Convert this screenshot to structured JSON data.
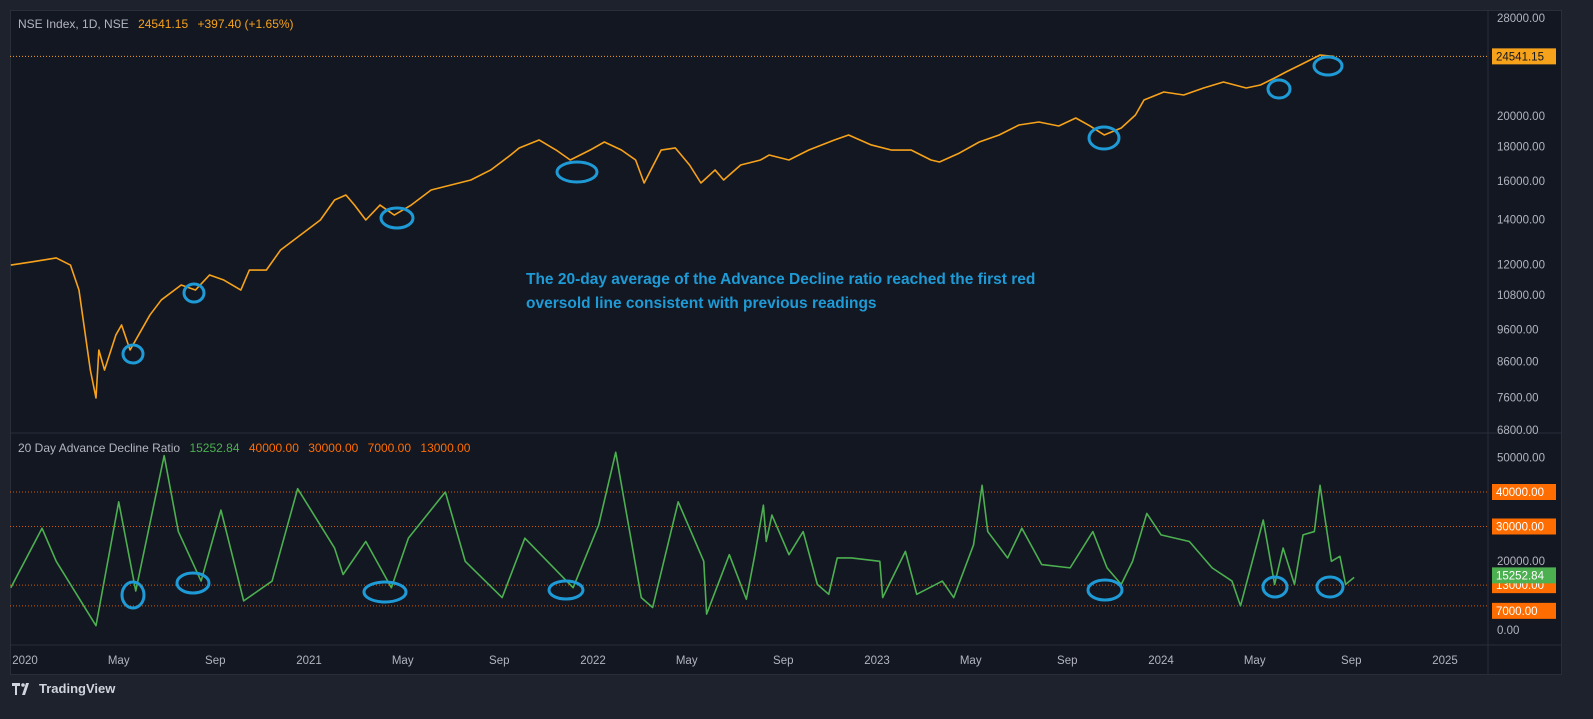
{
  "price_legend": {
    "symbol": "NSE Index, 1D, NSE",
    "last": "24541.15",
    "change": "+397.40 (+1.65%)"
  },
  "ad_legend": {
    "name": "20 Day Advance Decline Ratio",
    "value": "15252.84",
    "l1": "40000.00",
    "l2": "30000.00",
    "l3": "7000.00",
    "l4": "13000.00"
  },
  "annotation": {
    "line1": "The 20-day average of the Advance Decline ratio reached the first red",
    "line2": "oversold line consistent with previous readings"
  },
  "footer": {
    "brand": "TradingView"
  },
  "colors": {
    "price": "#f7a21b",
    "ad": "#4caf50",
    "levels": "#ff6d00",
    "circles": "#1e9bd7",
    "bg": "#131722"
  },
  "chart_data": [
    {
      "type": "line",
      "title": "NSE Index, 1D, NSE",
      "yscale": "log",
      "ylim": [
        6800,
        28000
      ],
      "yticks": [
        "28000.00",
        "20000.00",
        "18000.00",
        "16000.00",
        "14000.00",
        "12000.00",
        "10800.00",
        "9600.00",
        "8600.00",
        "7600.00",
        "6800.00"
      ],
      "last_price_label": "24541.15",
      "series": [
        {
          "name": "NSE Index",
          "points": [
            [
              2019.95,
              11980
            ],
            [
              2020.02,
              12105
            ],
            [
              2020.11,
              12275
            ],
            [
              2020.16,
              11980
            ],
            [
              2020.19,
              10995
            ],
            [
              2020.21,
              9585
            ],
            [
              2020.23,
              8352
            ],
            [
              2020.25,
              7588
            ],
            [
              2020.26,
              8946
            ],
            [
              2020.28,
              8352
            ],
            [
              2020.32,
              9422
            ],
            [
              2020.34,
              9750
            ],
            [
              2020.37,
              8946
            ],
            [
              2020.4,
              9422
            ],
            [
              2020.44,
              10092
            ],
            [
              2020.48,
              10626
            ],
            [
              2020.55,
              11186
            ],
            [
              2020.6,
              10995
            ],
            [
              2020.65,
              11578
            ],
            [
              2020.7,
              11379
            ],
            [
              2020.76,
              10995
            ],
            [
              2020.79,
              11777
            ],
            [
              2020.85,
              11777
            ],
            [
              2020.9,
              12617
            ],
            [
              2020.97,
              13283
            ],
            [
              2021.04,
              13986
            ],
            [
              2021.09,
              14980
            ],
            [
              2021.13,
              15240
            ],
            [
              2021.16,
              14725
            ],
            [
              2021.2,
              13986
            ],
            [
              2021.25,
              14725
            ],
            [
              2021.3,
              14227
            ],
            [
              2021.36,
              14725
            ],
            [
              2021.43,
              15504
            ],
            [
              2021.5,
              15772
            ],
            [
              2021.57,
              16047
            ],
            [
              2021.64,
              16610
            ],
            [
              2021.71,
              17486
            ],
            [
              2021.74,
              17914
            ],
            [
              2021.81,
              18413
            ],
            [
              2021.87,
              17788
            ],
            [
              2021.92,
              17189
            ],
            [
              2021.99,
              17788
            ],
            [
              2022.04,
              18285
            ],
            [
              2022.1,
              17788
            ],
            [
              2022.15,
              17189
            ],
            [
              2022.18,
              15882
            ],
            [
              2022.24,
              17788
            ],
            [
              2022.29,
              17914
            ],
            [
              2022.34,
              16895
            ],
            [
              2022.38,
              15882
            ],
            [
              2022.43,
              16610
            ],
            [
              2022.46,
              16047
            ],
            [
              2022.52,
              16895
            ],
            [
              2022.59,
              17189
            ],
            [
              2022.62,
              17486
            ],
            [
              2022.69,
              17189
            ],
            [
              2022.76,
              17788
            ],
            [
              2022.85,
              18413
            ],
            [
              2022.9,
              18732
            ],
            [
              2022.98,
              18100
            ],
            [
              2023.05,
              17788
            ],
            [
              2023.12,
              17788
            ],
            [
              2023.19,
              17189
            ],
            [
              2023.22,
              17071
            ],
            [
              2023.29,
              17600
            ],
            [
              2023.36,
              18285
            ],
            [
              2023.43,
              18732
            ],
            [
              2023.5,
              19384
            ],
            [
              2023.57,
              19585
            ],
            [
              2023.64,
              19320
            ],
            [
              2023.7,
              19857
            ],
            [
              2023.75,
              19320
            ],
            [
              2023.8,
              18732
            ],
            [
              2023.86,
              19185
            ],
            [
              2023.91,
              20062
            ],
            [
              2023.94,
              21123
            ],
            [
              2024.01,
              21714
            ],
            [
              2024.08,
              21490
            ],
            [
              2024.15,
              22014
            ],
            [
              2024.22,
              22473
            ],
            [
              2024.3,
              22014
            ],
            [
              2024.35,
              22243
            ],
            [
              2024.4,
              22784
            ],
            [
              2024.44,
              23257
            ],
            [
              2024.49,
              23825
            ],
            [
              2024.56,
              24657
            ],
            [
              2024.61,
              24541.15
            ]
          ]
        }
      ]
    },
    {
      "type": "line",
      "title": "20 Day Advance Decline Ratio",
      "ylim": [
        0,
        55000
      ],
      "yticks": [
        "50000.00",
        "20000.00",
        "0.00"
      ],
      "levels": [
        {
          "value": 40000,
          "label": "40000.00"
        },
        {
          "value": 30000,
          "label": "30000.00"
        },
        {
          "value": 13000,
          "label": "13000.00"
        },
        {
          "value": 7000,
          "label": "7000.00"
        }
      ],
      "last_value_label": "15252.84",
      "series": [
        {
          "name": "20 Day Advance Decline Ratio",
          "points": [
            [
              2019.95,
              12260
            ],
            [
              2020.06,
              29490
            ],
            [
              2020.11,
              19920
            ],
            [
              2020.25,
              1260
            ],
            [
              2020.33,
              37140
            ],
            [
              2020.39,
              11300
            ],
            [
              2020.49,
              50540
            ],
            [
              2020.54,
              28530
            ],
            [
              2020.62,
              14180
            ],
            [
              2020.69,
              34750
            ],
            [
              2020.77,
              8440
            ],
            [
              2020.87,
              14180
            ],
            [
              2020.96,
              40970
            ],
            [
              2021.09,
              23750
            ],
            [
              2021.12,
              16090
            ],
            [
              2021.2,
              25660
            ],
            [
              2021.29,
              12260
            ],
            [
              2021.35,
              26620
            ],
            [
              2021.48,
              40010
            ],
            [
              2021.55,
              19920
            ],
            [
              2021.68,
              9390
            ],
            [
              2021.76,
              26620
            ],
            [
              2021.93,
              12260
            ],
            [
              2022.02,
              30440
            ],
            [
              2022.08,
              51500
            ],
            [
              2022.17,
              9390
            ],
            [
              2022.21,
              6520
            ],
            [
              2022.3,
              37140
            ],
            [
              2022.39,
              19920
            ],
            [
              2022.4,
              4610
            ],
            [
              2022.48,
              21830
            ],
            [
              2022.54,
              8910
            ],
            [
              2022.57,
              21830
            ],
            [
              2022.6,
              36190
            ],
            [
              2022.61,
              25660
            ],
            [
              2022.63,
              33320
            ],
            [
              2022.69,
              21830
            ],
            [
              2022.74,
              28530
            ],
            [
              2022.79,
              13220
            ],
            [
              2022.83,
              10350
            ],
            [
              2022.86,
              20880
            ],
            [
              2022.91,
              20880
            ],
            [
              2023.01,
              19920
            ],
            [
              2023.02,
              9390
            ],
            [
              2023.1,
              22790
            ],
            [
              2023.14,
              10350
            ],
            [
              2023.23,
              14180
            ],
            [
              2023.27,
              9390
            ],
            [
              2023.34,
              24700
            ],
            [
              2023.37,
              41930
            ],
            [
              2023.39,
              28530
            ],
            [
              2023.46,
              20880
            ],
            [
              2023.51,
              29490
            ],
            [
              2023.58,
              18960
            ],
            [
              2023.68,
              18010
            ],
            [
              2023.76,
              28530
            ],
            [
              2023.81,
              18010
            ],
            [
              2023.86,
              13220
            ],
            [
              2023.9,
              19920
            ],
            [
              2023.95,
              33790
            ],
            [
              2024.0,
              27580
            ],
            [
              2024.1,
              25660
            ],
            [
              2024.18,
              18010
            ],
            [
              2024.25,
              14180
            ],
            [
              2024.28,
              7000
            ],
            [
              2024.36,
              31880
            ],
            [
              2024.4,
              13220
            ],
            [
              2024.43,
              23750
            ],
            [
              2024.47,
              13220
            ],
            [
              2024.5,
              27580
            ],
            [
              2024.54,
              28530
            ],
            [
              2024.56,
              41930
            ],
            [
              2024.6,
              19920
            ],
            [
              2024.63,
              21350
            ],
            [
              2024.65,
              13220
            ],
            [
              2024.68,
              15252.84
            ]
          ]
        }
      ]
    }
  ],
  "xaxis": [
    {
      "t": 2020.0,
      "label": "2020"
    },
    {
      "t": 2020.33,
      "label": "May"
    },
    {
      "t": 2020.67,
      "label": "Sep"
    },
    {
      "t": 2021.0,
      "label": "2021"
    },
    {
      "t": 2021.33,
      "label": "May"
    },
    {
      "t": 2021.67,
      "label": "Sep"
    },
    {
      "t": 2022.0,
      "label": "2022"
    },
    {
      "t": 2022.33,
      "label": "May"
    },
    {
      "t": 2022.67,
      "label": "Sep"
    },
    {
      "t": 2023.0,
      "label": "2023"
    },
    {
      "t": 2023.33,
      "label": "May"
    },
    {
      "t": 2023.67,
      "label": "Sep"
    },
    {
      "t": 2024.0,
      "label": "2024"
    },
    {
      "t": 2024.33,
      "label": "May"
    },
    {
      "t": 2024.67,
      "label": "Sep"
    },
    {
      "t": 2025.0,
      "label": "2025"
    }
  ]
}
